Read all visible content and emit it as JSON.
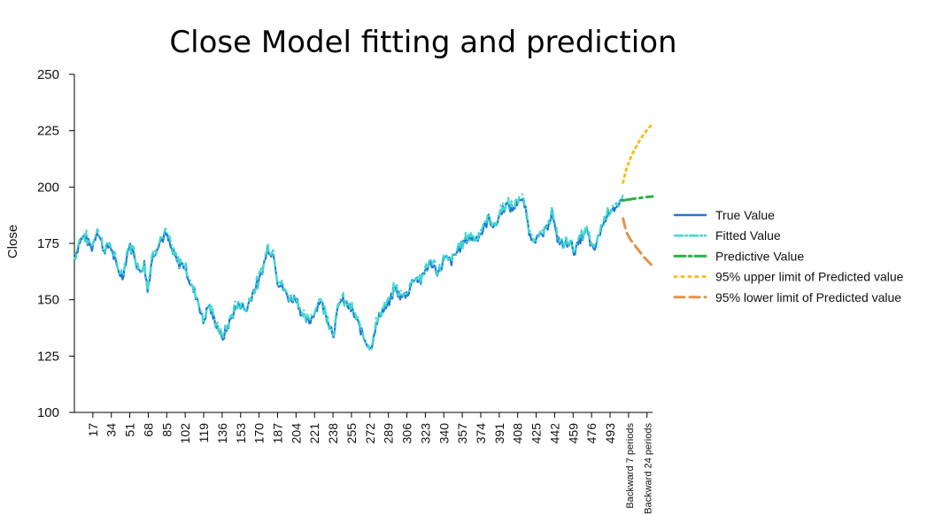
{
  "chart_data": {
    "type": "line",
    "title": "Close Model fitting and prediction",
    "xlabel": "",
    "ylabel": "Close",
    "ylim": [
      100,
      250
    ],
    "yticks": [
      100,
      125,
      150,
      175,
      200,
      225,
      250
    ],
    "xticks": [
      "17",
      "34",
      "51",
      "68",
      "85",
      "102",
      "119",
      "136",
      "153",
      "170",
      "187",
      "204",
      "221",
      "238",
      "255",
      "272",
      "289",
      "306",
      "323",
      "340",
      "357",
      "374",
      "391",
      "408",
      "425",
      "442",
      "459",
      "476",
      "493",
      "Backward 7 periods",
      "Backward 24 periods"
    ],
    "grid": false,
    "legend_position": "right",
    "x_range": [
      1,
      530
    ],
    "colors": {
      "true": "#1f77d4",
      "fitted": "#3fd9cf",
      "predictive": "#2bb34a",
      "upper": "#f7be1e",
      "lower": "#e3924e"
    },
    "anchor_points": {
      "x": [
        1,
        6,
        10,
        17,
        22,
        28,
        34,
        40,
        45,
        51,
        56,
        60,
        65,
        68,
        72,
        78,
        85,
        90,
        96,
        102,
        108,
        114,
        119,
        124,
        128,
        134,
        136,
        142,
        148,
        153,
        158,
        164,
        170,
        174,
        178,
        184,
        187,
        192,
        198,
        204,
        210,
        216,
        221,
        226,
        232,
        238,
        244,
        250,
        255,
        260,
        266,
        270,
        272,
        276,
        282,
        289,
        294,
        300,
        306,
        312,
        318,
        323,
        328,
        334,
        340,
        346,
        352,
        357,
        362,
        368,
        374,
        380,
        386,
        391,
        396,
        402,
        408,
        413,
        418,
        425,
        432,
        438,
        442,
        448,
        454,
        459,
        464,
        470,
        476,
        482,
        488,
        493,
        498,
        503
      ],
      "y": [
        168,
        176,
        178,
        173,
        181,
        172,
        174,
        164,
        160,
        174,
        170,
        162,
        166,
        154,
        168,
        175,
        179,
        172,
        166,
        165,
        156,
        150,
        140,
        148,
        142,
        136,
        132,
        139,
        146,
        148,
        145,
        153,
        158,
        165,
        173,
        169,
        158,
        155,
        150,
        151,
        142,
        140,
        145,
        150,
        142,
        135,
        150,
        148,
        145,
        140,
        133,
        130,
        128,
        137,
        145,
        148,
        155,
        151,
        153,
        160,
        158,
        164,
        166,
        162,
        168,
        167,
        172,
        175,
        178,
        177,
        180,
        186,
        182,
        189,
        192,
        190,
        195,
        192,
        178,
        177,
        180,
        189,
        178,
        174,
        176,
        171,
        177,
        180,
        171,
        180,
        188,
        191,
        190,
        194
      ]
    },
    "series": [
      {
        "name": "True Value",
        "style": "solid"
      },
      {
        "name": "Fitted Value",
        "style": "dashdot"
      },
      {
        "name": "Predictive Value",
        "style": "dash",
        "x": [
          503,
          506,
          510,
          514,
          518,
          522,
          526,
          530
        ],
        "y": [
          194,
          194.3,
          194.6,
          194.9,
          195.1,
          195.4,
          195.6,
          195.8
        ]
      },
      {
        "name": "95% upper limit of Predicted value",
        "style": "dotted",
        "x": [
          503,
          506,
          510,
          514,
          518,
          522,
          526,
          530
        ],
        "y": [
          202,
          208,
          213,
          217,
          220.5,
          223.5,
          226,
          228
        ]
      },
      {
        "name": "95% lower limit of Predicted value",
        "style": "longdash",
        "x": [
          503,
          506,
          510,
          514,
          518,
          522,
          526,
          530
        ],
        "y": [
          186,
          180,
          176.5,
          174,
          171.5,
          169,
          167,
          165
        ]
      }
    ]
  }
}
